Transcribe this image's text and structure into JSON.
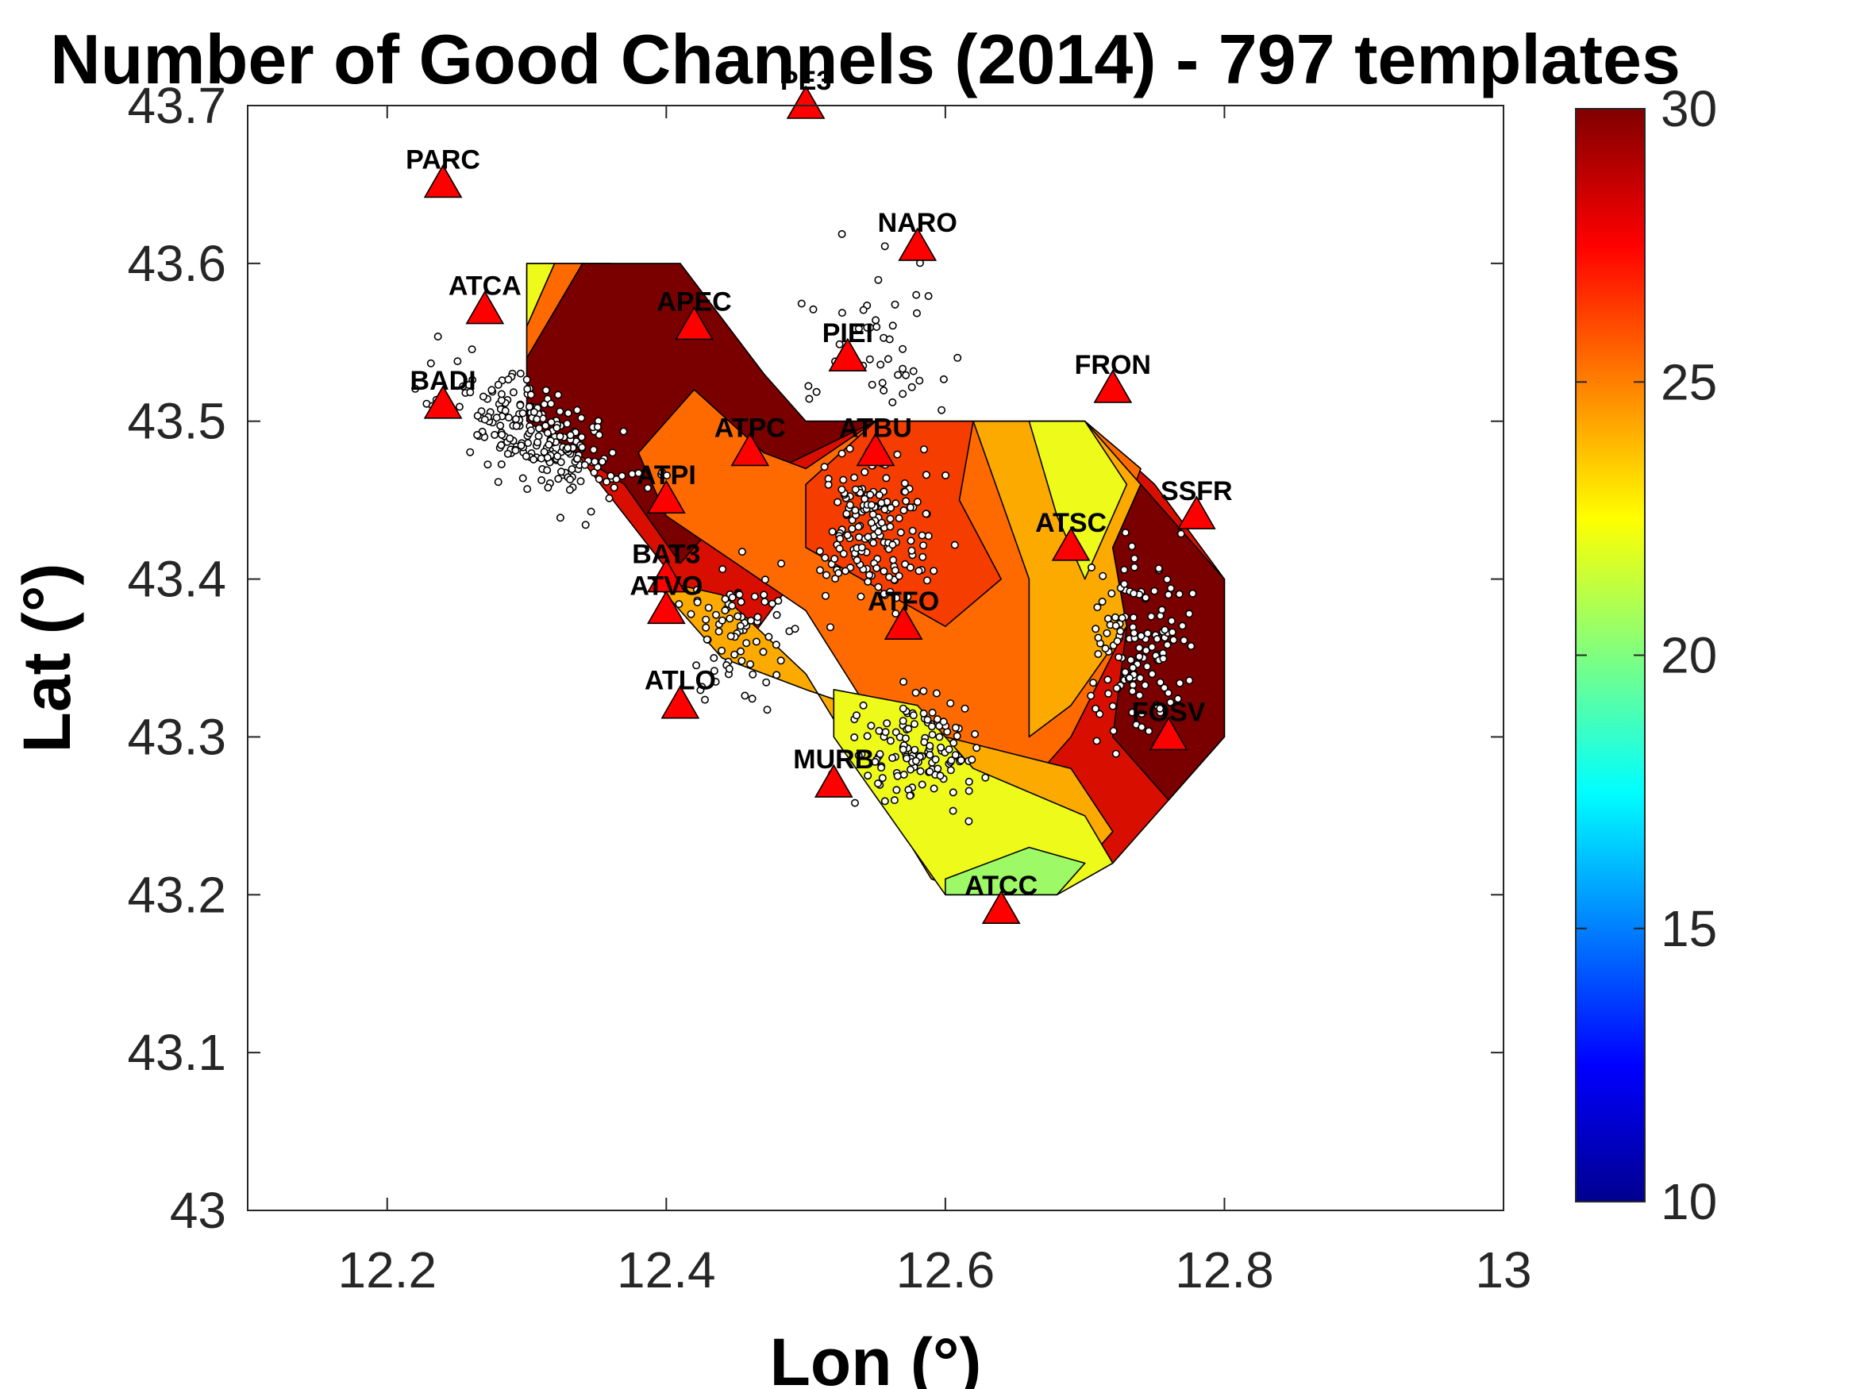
{
  "chart_data": {
    "type": "contour",
    "title": "Number of Good Channels (2014) - 797 templates",
    "xlabel": "Lon (°)",
    "ylabel": "Lat (°)",
    "xlim": [
      12.1,
      13.0
    ],
    "ylim": [
      43.0,
      43.7
    ],
    "xticks": [
      "12.2",
      "12.4",
      "12.6",
      "12.8",
      "13"
    ],
    "xtick_values": [
      12.2,
      12.4,
      12.6,
      12.8,
      13.0
    ],
    "yticks": [
      "43",
      "43.1",
      "43.2",
      "43.3",
      "43.4",
      "43.5",
      "43.6",
      "43.7"
    ],
    "ytick_values": [
      43.0,
      43.1,
      43.2,
      43.3,
      43.4,
      43.5,
      43.6,
      43.7
    ],
    "colorbar": {
      "colormap": "jet",
      "range": [
        10,
        30
      ],
      "ticks": [
        "10",
        "15",
        "20",
        "25",
        "30"
      ],
      "tick_values": [
        10,
        15,
        20,
        25,
        30
      ]
    },
    "contour_levels": [
      {
        "value": 22,
        "color": "#9dfa66"
      },
      {
        "value": 24,
        "color": "#eefa1a"
      },
      {
        "value": 25,
        "color": "#fcaa00"
      },
      {
        "value": 26,
        "color": "#ff6a00"
      },
      {
        "value": 27,
        "color": "#f63d00"
      },
      {
        "value": 28,
        "color": "#d80f00"
      },
      {
        "value": 29,
        "color": "#7a0000"
      }
    ],
    "contour_regions": [
      {
        "level": 28,
        "polygon": [
          [
            12.3,
            43.6
          ],
          [
            12.36,
            43.6
          ],
          [
            12.44,
            43.54
          ],
          [
            12.5,
            43.5
          ],
          [
            12.7,
            43.5
          ],
          [
            12.75,
            43.46
          ],
          [
            12.8,
            43.4
          ],
          [
            12.8,
            43.3
          ],
          [
            12.72,
            43.22
          ],
          [
            12.64,
            43.27
          ],
          [
            12.5,
            43.41
          ],
          [
            12.45,
            43.35
          ],
          [
            12.3,
            43.52
          ]
        ]
      },
      {
        "level": 24,
        "polygon": [
          [
            12.3,
            43.6
          ],
          [
            12.32,
            43.6
          ],
          [
            12.3,
            43.56
          ]
        ]
      },
      {
        "level": 26,
        "polygon": [
          [
            12.32,
            43.6
          ],
          [
            12.34,
            43.6
          ],
          [
            12.3,
            43.54
          ],
          [
            12.3,
            43.56
          ]
        ]
      },
      {
        "level": 29,
        "polygon": [
          [
            12.34,
            43.6
          ],
          [
            12.41,
            43.6
          ],
          [
            12.47,
            43.53
          ],
          [
            12.5,
            43.5
          ],
          [
            12.55,
            43.5
          ],
          [
            12.48,
            43.47
          ],
          [
            12.44,
            43.44
          ],
          [
            12.41,
            43.41
          ],
          [
            12.37,
            43.46
          ],
          [
            12.3,
            43.5
          ],
          [
            12.3,
            43.54
          ]
        ]
      },
      {
        "level": 26,
        "polygon": [
          [
            12.38,
            43.48
          ],
          [
            12.42,
            43.52
          ],
          [
            12.47,
            43.48
          ],
          [
            12.5,
            43.47
          ],
          [
            12.55,
            43.5
          ],
          [
            12.7,
            43.5
          ],
          [
            12.74,
            43.47
          ],
          [
            12.72,
            43.42
          ],
          [
            12.73,
            43.37
          ],
          [
            12.69,
            43.3
          ],
          [
            12.64,
            43.25
          ],
          [
            12.55,
            43.31
          ],
          [
            12.5,
            43.38
          ],
          [
            12.4,
            43.44
          ]
        ]
      },
      {
        "level": 27,
        "polygon": [
          [
            12.5,
            43.46
          ],
          [
            12.55,
            43.5
          ],
          [
            12.62,
            43.5
          ],
          [
            12.61,
            43.45
          ],
          [
            12.64,
            43.4
          ],
          [
            12.6,
            43.37
          ],
          [
            12.5,
            43.42
          ]
        ]
      },
      {
        "level": 25,
        "polygon": [
          [
            12.62,
            43.5
          ],
          [
            12.7,
            43.5
          ],
          [
            12.74,
            43.46
          ],
          [
            12.72,
            43.42
          ],
          [
            12.73,
            43.37
          ],
          [
            12.69,
            43.32
          ],
          [
            12.66,
            43.3
          ],
          [
            12.66,
            43.4
          ],
          [
            12.64,
            43.45
          ]
        ]
      },
      {
        "level": 24,
        "polygon": [
          [
            12.66,
            43.5
          ],
          [
            12.7,
            43.5
          ],
          [
            12.73,
            43.46
          ],
          [
            12.7,
            43.4
          ],
          [
            12.68,
            43.44
          ]
        ]
      },
      {
        "level": 25,
        "polygon": [
          [
            12.39,
            43.4
          ],
          [
            12.44,
            43.35
          ],
          [
            12.5,
            43.33
          ],
          [
            12.6,
            43.3
          ],
          [
            12.69,
            43.28
          ],
          [
            12.72,
            43.24
          ],
          [
            12.7,
            43.22
          ],
          [
            12.62,
            43.2
          ],
          [
            12.59,
            43.21
          ],
          [
            12.5,
            43.34
          ],
          [
            12.44,
            43.39
          ]
        ]
      },
      {
        "level": 24,
        "polygon": [
          [
            12.52,
            43.33
          ],
          [
            12.58,
            43.32
          ],
          [
            12.62,
            43.28
          ],
          [
            12.7,
            43.25
          ],
          [
            12.72,
            43.22
          ],
          [
            12.68,
            43.2
          ],
          [
            12.6,
            43.2
          ],
          [
            12.52,
            43.3
          ]
        ]
      },
      {
        "level": 22,
        "polygon": [
          [
            12.6,
            43.2
          ],
          [
            12.68,
            43.2
          ],
          [
            12.7,
            43.22
          ],
          [
            12.66,
            43.23
          ],
          [
            12.6,
            43.21
          ]
        ]
      },
      {
        "level": 29,
        "polygon": [
          [
            12.74,
            43.46
          ],
          [
            12.8,
            43.4
          ],
          [
            12.8,
            43.3
          ],
          [
            12.76,
            43.26
          ],
          [
            12.72,
            43.3
          ],
          [
            12.73,
            43.37
          ],
          [
            12.72,
            43.42
          ]
        ]
      }
    ],
    "stations": [
      {
        "name": "PARC",
        "lon": 12.24,
        "lat": 43.65
      },
      {
        "name": "PE3",
        "lon": 12.5,
        "lat": 43.7
      },
      {
        "name": "NARO",
        "lon": 12.58,
        "lat": 43.61
      },
      {
        "name": "ATCA",
        "lon": 12.27,
        "lat": 43.57
      },
      {
        "name": "APEC",
        "lon": 12.42,
        "lat": 43.56
      },
      {
        "name": "PIEI",
        "lon": 12.53,
        "lat": 43.54
      },
      {
        "name": "FRON",
        "lon": 12.72,
        "lat": 43.52
      },
      {
        "name": "BADI",
        "lon": 12.24,
        "lat": 43.51
      },
      {
        "name": "ATPC",
        "lon": 12.46,
        "lat": 43.48
      },
      {
        "name": "ATBU",
        "lon": 12.55,
        "lat": 43.48
      },
      {
        "name": "ATPI",
        "lon": 12.4,
        "lat": 43.45
      },
      {
        "name": "SSFR",
        "lon": 12.78,
        "lat": 43.44
      },
      {
        "name": "ATSC",
        "lon": 12.69,
        "lat": 43.42
      },
      {
        "name": "BAT3",
        "lon": 12.4,
        "lat": 43.4
      },
      {
        "name": "ATVO",
        "lon": 12.4,
        "lat": 43.38
      },
      {
        "name": "ATFO",
        "lon": 12.57,
        "lat": 43.37
      },
      {
        "name": "ATLO",
        "lon": 12.41,
        "lat": 43.32
      },
      {
        "name": "FOSV",
        "lon": 12.76,
        "lat": 43.3
      },
      {
        "name": "MURB",
        "lon": 12.52,
        "lat": 43.27
      },
      {
        "name": "ATCC",
        "lon": 12.64,
        "lat": 43.19
      }
    ],
    "events_count": 797,
    "events_color": "#ffffff",
    "station_color": "#ff0000"
  }
}
